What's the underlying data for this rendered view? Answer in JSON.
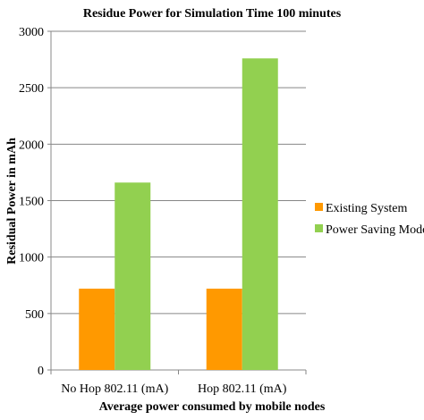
{
  "chart_data": {
    "type": "bar",
    "title": "Residue Power for Simulation Time 100 minutes",
    "xlabel": "Average power consumed by mobile nodes",
    "ylabel": "Residual Power in mAh",
    "categories": [
      "No Hop 802.11 (mA)",
      "Hop 802.11 (mA)"
    ],
    "series": [
      {
        "name": "Existing System",
        "color": "#FF9900",
        "values": [
          720,
          720
        ]
      },
      {
        "name": "Power Saving Mode",
        "color": "#92D050",
        "values": [
          1660,
          2760
        ]
      }
    ],
    "ylim": [
      0,
      3000
    ],
    "yticks": [
      0,
      500,
      1000,
      1500,
      2000,
      2500,
      3000
    ],
    "grid": true,
    "legend_position": "right"
  }
}
